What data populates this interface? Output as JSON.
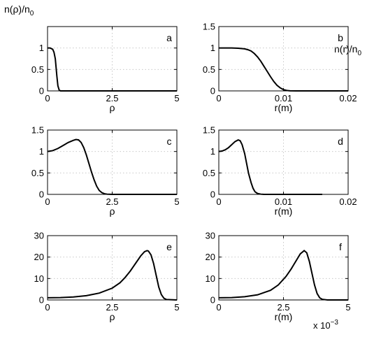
{
  "figure": {
    "ylabel_left": "n(ρ)/n",
    "ylabel_left_sub": "0",
    "ylabel_right": "n(r)/n",
    "ylabel_right_sub": "0",
    "exponent_base": "x 10",
    "exponent_power": "−3"
  },
  "chart_data": [
    {
      "id": "a",
      "type": "line",
      "panel_letter": "a",
      "xlabel": "ρ",
      "ylabel": "",
      "xlim": [
        0,
        5
      ],
      "ylim": [
        0,
        1.5
      ],
      "xticks": [
        0,
        2.5,
        5
      ],
      "xtick_labels": [
        "0",
        "2.5",
        "5"
      ],
      "yticks": [
        0,
        0.5,
        1
      ],
      "ytick_labels": [
        "0",
        "0.5",
        "1"
      ],
      "grid": true,
      "series": [
        {
          "x": [
            0,
            0.1,
            0.2,
            0.25,
            0.3,
            0.33,
            0.36,
            0.4,
            0.45,
            0.5,
            1,
            2,
            3,
            4,
            5
          ],
          "y": [
            1.0,
            1.0,
            0.97,
            0.9,
            0.75,
            0.55,
            0.35,
            0.12,
            0.02,
            0,
            0,
            0,
            0,
            0,
            0
          ]
        }
      ]
    },
    {
      "id": "b",
      "type": "line",
      "panel_letter": "b",
      "xlabel": "r(m)",
      "ylabel": "",
      "xlim": [
        0,
        0.02
      ],
      "ylim": [
        0,
        1.5
      ],
      "xticks": [
        0,
        0.01,
        0.02
      ],
      "xtick_labels": [
        "0",
        "0.01",
        "0.02"
      ],
      "yticks": [
        0,
        0.5,
        1,
        1.5
      ],
      "ytick_labels": [
        "0",
        "0.5",
        "1",
        "1.5"
      ],
      "grid": true,
      "series": [
        {
          "x": [
            0,
            0.002,
            0.003,
            0.004,
            0.0045,
            0.005,
            0.0055,
            0.006,
            0.0065,
            0.007,
            0.0075,
            0.008,
            0.0085,
            0.009,
            0.0095,
            0.01,
            0.0105,
            0.011,
            0.012,
            0.015,
            0.02
          ],
          "y": [
            1.0,
            1.0,
            0.995,
            0.98,
            0.96,
            0.93,
            0.87,
            0.79,
            0.69,
            0.57,
            0.45,
            0.33,
            0.22,
            0.13,
            0.07,
            0.03,
            0.01,
            0.003,
            0,
            0,
            0
          ]
        }
      ]
    },
    {
      "id": "c",
      "type": "line",
      "panel_letter": "c",
      "xlabel": "ρ",
      "ylabel": "",
      "xlim": [
        0,
        5
      ],
      "ylim": [
        0,
        1.5
      ],
      "xticks": [
        0,
        2.5,
        5
      ],
      "xtick_labels": [
        "0",
        "2.5",
        "5"
      ],
      "yticks": [
        0,
        0.5,
        1,
        1.5
      ],
      "ytick_labels": [
        "0",
        "0.5",
        "1",
        "1.5"
      ],
      "grid": true,
      "series": [
        {
          "x": [
            0,
            0.2,
            0.4,
            0.6,
            0.8,
            1.0,
            1.1,
            1.2,
            1.3,
            1.4,
            1.5,
            1.6,
            1.7,
            1.8,
            1.9,
            2.0,
            2.1,
            2.2,
            2.3,
            2.5,
            3,
            4,
            5
          ],
          "y": [
            1.0,
            1.02,
            1.07,
            1.14,
            1.21,
            1.26,
            1.28,
            1.27,
            1.21,
            1.09,
            0.92,
            0.72,
            0.52,
            0.34,
            0.19,
            0.09,
            0.04,
            0.015,
            0.005,
            0,
            0,
            0,
            0
          ]
        }
      ]
    },
    {
      "id": "d",
      "type": "line",
      "panel_letter": "d",
      "xlabel": "r(m)",
      "ylabel": "",
      "xlim": [
        0,
        0.02
      ],
      "ylim": [
        0,
        1.5
      ],
      "xticks": [
        0,
        0.01,
        0.02
      ],
      "xtick_labels": [
        "0",
        "0.01",
        "0.02"
      ],
      "yticks": [
        0,
        0.5,
        1,
        1.5
      ],
      "ytick_labels": [
        "0",
        "0.5",
        "1",
        "1.5"
      ],
      "grid": true,
      "series": [
        {
          "x": [
            0,
            0.0005,
            0.001,
            0.0015,
            0.002,
            0.0025,
            0.003,
            0.0033,
            0.0036,
            0.004,
            0.0043,
            0.0046,
            0.005,
            0.0053,
            0.0056,
            0.006,
            0.0065,
            0.007,
            0.01,
            0.015,
            0.016
          ],
          "y": [
            1.0,
            1.01,
            1.04,
            1.09,
            1.16,
            1.23,
            1.27,
            1.25,
            1.16,
            0.95,
            0.72,
            0.49,
            0.27,
            0.14,
            0.06,
            0.02,
            0.005,
            0,
            0,
            0,
            0
          ]
        }
      ]
    },
    {
      "id": "e",
      "type": "line",
      "panel_letter": "e",
      "xlabel": "ρ",
      "ylabel": "",
      "xlim": [
        0,
        5
      ],
      "ylim": [
        0,
        30
      ],
      "xticks": [
        0,
        2.5,
        5
      ],
      "xtick_labels": [
        "0",
        "2.5",
        "5"
      ],
      "yticks": [
        0,
        10,
        20,
        30
      ],
      "ytick_labels": [
        "0",
        "10",
        "20",
        "30"
      ],
      "grid": true,
      "series": [
        {
          "x": [
            0,
            0.5,
            1.0,
            1.5,
            2.0,
            2.5,
            2.8,
            3.0,
            3.2,
            3.4,
            3.6,
            3.75,
            3.85,
            3.9,
            4.0,
            4.1,
            4.2,
            4.3,
            4.4,
            4.5,
            4.6,
            5
          ],
          "y": [
            1.0,
            1.1,
            1.4,
            2.0,
            3.2,
            5.5,
            8.0,
            10.5,
            13.5,
            17.0,
            20.5,
            22.5,
            23.0,
            22.8,
            21.0,
            17.0,
            11.5,
            6.0,
            2.5,
            0.8,
            0.2,
            0
          ]
        }
      ]
    },
    {
      "id": "f",
      "type": "line",
      "panel_letter": "f",
      "xlabel": "r(m)",
      "ylabel": "",
      "x_axis_multiplier": "x 10^-3",
      "xlim": [
        0,
        5
      ],
      "ylim": [
        0,
        30
      ],
      "xticks": [
        0,
        2.5,
        5
      ],
      "xtick_labels": [
        "0",
        "2.5",
        "5"
      ],
      "yticks": [
        0,
        10,
        20,
        30
      ],
      "ytick_labels": [
        "0",
        "10",
        "20",
        "30"
      ],
      "grid": true,
      "series": [
        {
          "x": [
            0,
            0.5,
            1.0,
            1.5,
            2.0,
            2.3,
            2.6,
            2.8,
            3.0,
            3.15,
            3.3,
            3.4,
            3.5,
            3.6,
            3.7,
            3.8,
            3.9,
            4.0,
            4.2,
            5
          ],
          "y": [
            1.0,
            1.1,
            1.5,
            2.4,
            4.5,
            7.0,
            11.0,
            14.5,
            18.5,
            21.5,
            23.0,
            22.0,
            18.0,
            12.5,
            7.0,
            3.0,
            1.0,
            0.3,
            0,
            0
          ]
        }
      ]
    }
  ]
}
